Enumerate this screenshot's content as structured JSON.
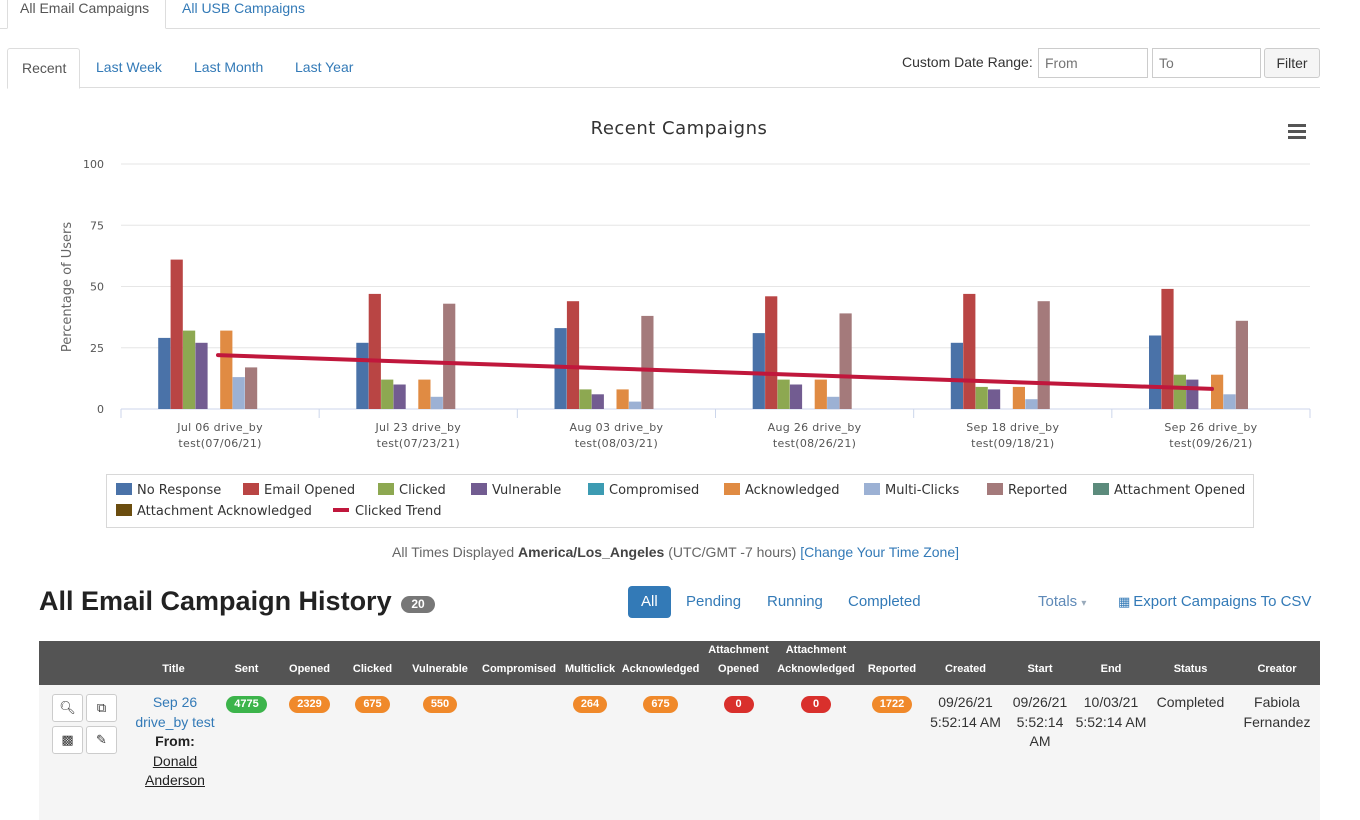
{
  "top_tabs": {
    "email": "All Email Campaigns",
    "usb": "All USB Campaigns"
  },
  "range_tabs": [
    "Recent",
    "Last Week",
    "Last Month",
    "Last Year"
  ],
  "custom_range": {
    "label": "Custom Date Range:",
    "from_placeholder": "From",
    "to_placeholder": "To",
    "filter_label": "Filter"
  },
  "chart_menu_icon": "hamburger-menu-icon",
  "chart_data": {
    "type": "bar",
    "title": "Recent Campaigns",
    "ylabel": "Percentage of Users",
    "xlabel": "",
    "ylim": [
      0,
      100
    ],
    "yticks": [
      0,
      25,
      50,
      75,
      100
    ],
    "grid": true,
    "legend_position": "bottom",
    "categories": [
      [
        "Jul 06 drive_by",
        "test(07/06/21)"
      ],
      [
        "Jul 23 drive_by",
        "test(07/23/21)"
      ],
      [
        "Aug 03 drive_by",
        "test(08/03/21)"
      ],
      [
        "Aug 26 drive_by",
        "test(08/26/21)"
      ],
      [
        "Sep 18 drive_by",
        "test(09/18/21)"
      ],
      [
        "Sep 26 drive_by",
        "test(09/26/21)"
      ]
    ],
    "series": [
      {
        "name": "No Response",
        "color": "#4a72a8",
        "values": [
          29,
          27,
          33,
          31,
          27,
          30
        ]
      },
      {
        "name": "Email Opened",
        "color": "#b94544",
        "values": [
          61,
          47,
          44,
          46,
          47,
          49
        ]
      },
      {
        "name": "Clicked",
        "color": "#8da851",
        "values": [
          32,
          12,
          8,
          12,
          9,
          14
        ]
      },
      {
        "name": "Vulnerable",
        "color": "#725c91",
        "values": [
          27,
          10,
          6,
          10,
          8,
          12
        ]
      },
      {
        "name": "Compromised",
        "color": "#3c9bb2",
        "values": [
          0,
          0,
          0,
          0,
          0,
          0
        ]
      },
      {
        "name": "Acknowledged",
        "color": "#e08b43",
        "values": [
          32,
          12,
          8,
          12,
          9,
          14
        ]
      },
      {
        "name": "Multi-Clicks",
        "color": "#9cb1d4",
        "values": [
          13,
          5,
          3,
          5,
          4,
          6
        ]
      },
      {
        "name": "Reported",
        "color": "#a47a7b",
        "values": [
          17,
          43,
          38,
          39,
          44,
          36
        ]
      },
      {
        "name": "Attachment Opened",
        "color": "#5c8b7c",
        "values": [
          0,
          0,
          0,
          0,
          0,
          0
        ]
      },
      {
        "name": "Attachment Acknowledged",
        "color": "#6b4d0f",
        "values": [
          0,
          0,
          0,
          0,
          0,
          0
        ]
      }
    ],
    "trend": {
      "name": "Clicked Trend",
      "color": "#c0173c",
      "values": [
        22,
        19.2,
        16.5,
        13.7,
        11,
        8.2
      ]
    }
  },
  "timezone": {
    "prefix": "All Times Displayed",
    "zone": "America/Los_Angeles",
    "offset": "(UTC/GMT -7 hours)",
    "change_link": "[Change Your Time Zone]"
  },
  "history": {
    "title": "All Email Campaign History",
    "count": "20",
    "filters": [
      "All",
      "Pending",
      "Running",
      "Completed"
    ],
    "totals_label": "Totals",
    "export_label": "Export Campaigns To CSV",
    "columns": {
      "title": "Title",
      "sent": "Sent",
      "opened": "Opened",
      "clicked": "Clicked",
      "vulnerable": "Vulnerable",
      "compromised": "Compromised",
      "multiclick": "Multiclick",
      "acknowledged": "Acknowledged",
      "att_opened": "Attachment\nOpened",
      "att_ack": "Attachment\nAcknowledged",
      "reported": "Reported",
      "created": "Created",
      "start": "Start",
      "end": "End",
      "status": "Status",
      "creator": "Creator"
    },
    "rows": [
      {
        "title": "Sep 26 drive_by test",
        "from_label": "From:",
        "sender": "Donald Anderson",
        "sent": "4775",
        "opened": "2329",
        "clicked": "675",
        "vulnerable": "550",
        "compromised": "",
        "multiclick": "264",
        "acknowledged": "675",
        "att_opened": "0",
        "att_ack": "0",
        "reported": "1722",
        "created": "09/26/21 5:52:14 AM",
        "start": "09/26/21 5:52:14 AM",
        "end": "10/03/21 5:52:14 AM",
        "status": "Completed",
        "creator": "Fabiola Fernandez"
      }
    ]
  },
  "badge_colors": {
    "green": "#3cb44b",
    "orange": "#f0892a",
    "red": "#d9302c"
  }
}
